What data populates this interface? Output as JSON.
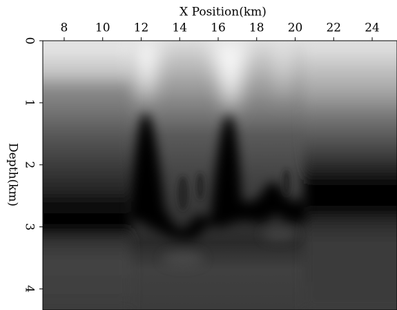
{
  "chart_data": {
    "type": "image",
    "xlabel": "X Position(km)",
    "ylabel": "Depth(km)",
    "xlim": [
      6.89,
      25.29
    ],
    "ylim": [
      0,
      4.34
    ],
    "xticks": [
      8,
      10,
      12,
      14,
      16,
      18,
      20,
      22,
      24
    ],
    "yticks": [
      0,
      1,
      2,
      3,
      4
    ],
    "x_axis_position": "top",
    "y_inverted": true
  }
}
